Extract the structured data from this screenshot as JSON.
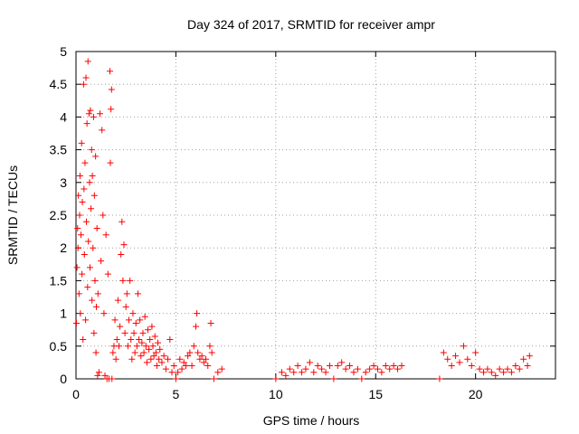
{
  "chart_data": {
    "type": "scatter",
    "title": "Day 324 of 2017, SRMTID for receiver ampr",
    "xlabel": "GPS time / hours",
    "ylabel": "SRMTID / TECUs",
    "xlim": [
      0,
      24
    ],
    "ylim": [
      0,
      5
    ],
    "x_ticks": [
      0,
      5,
      10,
      15,
      20
    ],
    "x_tick_labels": [
      "0",
      "5",
      "10",
      "15",
      "20"
    ],
    "y_ticks": [
      0,
      0.5,
      1,
      1.5,
      2,
      2.5,
      3,
      3.5,
      4,
      4.5,
      5
    ],
    "y_tick_labels": [
      "0",
      "0.5",
      "1",
      "1.5",
      "2",
      "2.5",
      "3",
      "3.5",
      "4",
      "4.5",
      "5"
    ],
    "grid": true,
    "marker": "plus",
    "color": "#ff0000",
    "series": [
      {
        "name": "SRMTID",
        "points": [
          [
            0.02,
            0.85
          ],
          [
            0.05,
            1.7
          ],
          [
            0.08,
            2.3
          ],
          [
            0.1,
            2.0
          ],
          [
            0.12,
            2.8
          ],
          [
            0.15,
            1.3
          ],
          [
            0.18,
            2.5
          ],
          [
            0.2,
            3.1
          ],
          [
            0.22,
            1.0
          ],
          [
            0.25,
            2.2
          ],
          [
            0.28,
            3.6
          ],
          [
            0.3,
            1.6
          ],
          [
            0.32,
            2.7
          ],
          [
            0.35,
            0.6
          ],
          [
            0.38,
            4.5
          ],
          [
            0.4,
            2.9
          ],
          [
            0.42,
            1.9
          ],
          [
            0.45,
            3.3
          ],
          [
            0.48,
            0.9
          ],
          [
            0.5,
            4.6
          ],
          [
            0.52,
            2.4
          ],
          [
            0.55,
            3.9
          ],
          [
            0.58,
            1.4
          ],
          [
            0.6,
            4.85
          ],
          [
            0.62,
            2.1
          ],
          [
            0.65,
            4.05
          ],
          [
            0.68,
            3.0
          ],
          [
            0.7,
            1.7
          ],
          [
            0.72,
            4.1
          ],
          [
            0.75,
            2.6
          ],
          [
            0.78,
            3.5
          ],
          [
            0.8,
            1.2
          ],
          [
            0.82,
            3.1
          ],
          [
            0.85,
            2.0
          ],
          [
            0.88,
            4.0
          ],
          [
            0.9,
            0.7
          ],
          [
            0.92,
            2.8
          ],
          [
            0.95,
            1.5
          ],
          [
            0.98,
            3.4
          ],
          [
            1.0,
            0.4
          ],
          [
            1.02,
            1.1
          ],
          [
            1.05,
            2.3
          ],
          [
            1.08,
            0.05
          ],
          [
            1.1,
            1.3
          ],
          [
            1.15,
            0.1
          ],
          [
            1.2,
            4.05
          ],
          [
            1.25,
            1.8
          ],
          [
            1.3,
            3.8
          ],
          [
            1.35,
            2.5
          ],
          [
            1.4,
            1.0
          ],
          [
            1.45,
            0.05
          ],
          [
            1.5,
            2.2
          ],
          [
            1.55,
            0.0
          ],
          [
            1.6,
            1.6
          ],
          [
            1.65,
            0.0
          ],
          [
            1.7,
            4.7
          ],
          [
            1.72,
            3.3
          ],
          [
            1.75,
            4.12
          ],
          [
            1.78,
            4.42
          ],
          [
            1.8,
            0.0
          ],
          [
            1.85,
            0.4
          ],
          [
            1.9,
            0.5
          ],
          [
            1.95,
            0.9
          ],
          [
            2.0,
            0.3
          ],
          [
            2.05,
            0.6
          ],
          [
            2.1,
            1.2
          ],
          [
            2.15,
            0.5
          ],
          [
            2.2,
            0.8
          ],
          [
            2.25,
            1.9
          ],
          [
            2.3,
            2.4
          ],
          [
            2.35,
            1.5
          ],
          [
            2.4,
            2.05
          ],
          [
            2.45,
            0.7
          ],
          [
            2.5,
            1.1
          ],
          [
            2.55,
            1.3
          ],
          [
            2.6,
            0.5
          ],
          [
            2.65,
            0.9
          ],
          [
            2.7,
            1.5
          ],
          [
            2.75,
            0.6
          ],
          [
            2.8,
            0.3
          ],
          [
            2.85,
            1.0
          ],
          [
            2.9,
            0.7
          ],
          [
            2.95,
            0.4
          ],
          [
            3.0,
            0.85
          ],
          [
            3.05,
            0.5
          ],
          [
            3.1,
            1.3
          ],
          [
            3.15,
            0.6
          ],
          [
            3.2,
            0.9
          ],
          [
            3.25,
            0.35
          ],
          [
            3.3,
            0.55
          ],
          [
            3.35,
            0.7
          ],
          [
            3.4,
            0.4
          ],
          [
            3.45,
            0.95
          ],
          [
            3.5,
            0.5
          ],
          [
            3.55,
            0.25
          ],
          [
            3.6,
            0.75
          ],
          [
            3.65,
            0.45
          ],
          [
            3.7,
            0.6
          ],
          [
            3.75,
            0.3
          ],
          [
            3.8,
            0.8
          ],
          [
            3.85,
            0.5
          ],
          [
            3.9,
            0.35
          ],
          [
            3.95,
            0.65
          ],
          [
            4.0,
            0.4
          ],
          [
            4.05,
            0.2
          ],
          [
            4.1,
            0.55
          ],
          [
            4.15,
            0.3
          ],
          [
            4.2,
            0.45
          ],
          [
            4.3,
            0.25
          ],
          [
            4.4,
            0.35
          ],
          [
            4.5,
            0.15
          ],
          [
            4.6,
            0.3
          ],
          [
            4.7,
            0.6
          ],
          [
            4.8,
            0.1
          ],
          [
            4.9,
            0.2
          ],
          [
            5.0,
            0.0
          ],
          [
            5.1,
            0.1
          ],
          [
            5.2,
            0.3
          ],
          [
            5.3,
            0.15
          ],
          [
            5.4,
            0.25
          ],
          [
            5.5,
            0.2
          ],
          [
            5.6,
            0.35
          ],
          [
            5.7,
            0.4
          ],
          [
            5.8,
            0.2
          ],
          [
            5.9,
            0.5
          ],
          [
            6.0,
            0.8
          ],
          [
            6.05,
            1.0
          ],
          [
            6.1,
            0.4
          ],
          [
            6.2,
            0.3
          ],
          [
            6.3,
            0.35
          ],
          [
            6.4,
            0.25
          ],
          [
            6.5,
            0.3
          ],
          [
            6.6,
            0.2
          ],
          [
            6.7,
            0.5
          ],
          [
            6.75,
            0.85
          ],
          [
            6.8,
            0.4
          ],
          [
            6.9,
            0.0
          ],
          [
            7.1,
            0.1
          ],
          [
            7.3,
            0.15
          ],
          [
            10.0,
            0.0
          ],
          [
            10.3,
            0.1
          ],
          [
            10.5,
            0.05
          ],
          [
            10.7,
            0.15
          ],
          [
            10.9,
            0.1
          ],
          [
            11.1,
            0.2
          ],
          [
            11.3,
            0.1
          ],
          [
            11.5,
            0.15
          ],
          [
            11.7,
            0.25
          ],
          [
            11.9,
            0.1
          ],
          [
            12.1,
            0.2
          ],
          [
            12.3,
            0.15
          ],
          [
            12.5,
            0.1
          ],
          [
            12.7,
            0.2
          ],
          [
            12.9,
            0.0
          ],
          [
            13.1,
            0.2
          ],
          [
            13.3,
            0.25
          ],
          [
            13.5,
            0.15
          ],
          [
            13.7,
            0.2
          ],
          [
            13.9,
            0.1
          ],
          [
            14.1,
            0.15
          ],
          [
            14.3,
            0.0
          ],
          [
            14.5,
            0.1
          ],
          [
            14.7,
            0.15
          ],
          [
            14.9,
            0.2
          ],
          [
            15.1,
            0.15
          ],
          [
            15.3,
            0.1
          ],
          [
            15.5,
            0.2
          ],
          [
            15.7,
            0.15
          ],
          [
            15.9,
            0.2
          ],
          [
            16.1,
            0.15
          ],
          [
            16.3,
            0.2
          ],
          [
            18.2,
            0.0
          ],
          [
            18.4,
            0.4
          ],
          [
            18.6,
            0.3
          ],
          [
            18.8,
            0.2
          ],
          [
            19.0,
            0.35
          ],
          [
            19.2,
            0.25
          ],
          [
            19.4,
            0.5
          ],
          [
            19.6,
            0.3
          ],
          [
            19.8,
            0.2
          ],
          [
            20.0,
            0.4
          ],
          [
            20.2,
            0.15
          ],
          [
            20.4,
            0.1
          ],
          [
            20.6,
            0.15
          ],
          [
            20.8,
            0.1
          ],
          [
            21.0,
            0.05
          ],
          [
            21.2,
            0.15
          ],
          [
            21.4,
            0.1
          ],
          [
            21.6,
            0.15
          ],
          [
            21.8,
            0.1
          ],
          [
            22.0,
            0.2
          ],
          [
            22.2,
            0.15
          ],
          [
            22.4,
            0.3
          ],
          [
            22.6,
            0.2
          ],
          [
            22.7,
            0.35
          ]
        ]
      }
    ]
  }
}
